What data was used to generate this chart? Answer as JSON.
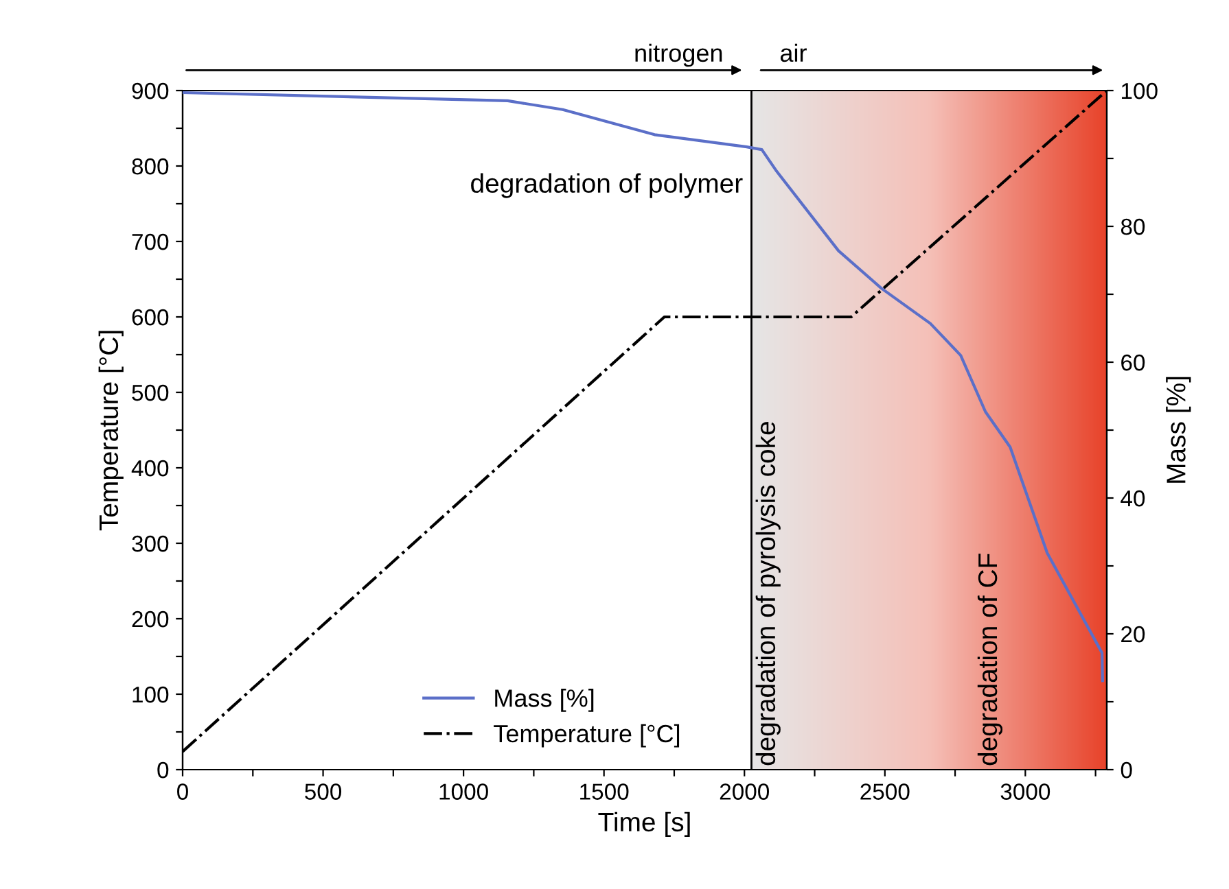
{
  "chart_data": {
    "type": "line",
    "xlabel": "Time [s]",
    "ylabel": "Temperature [°C]",
    "y2label": "Mass [%]",
    "series": [
      {
        "name": "Mass [%]",
        "color": "#5b6fc8",
        "axis": "y2",
        "line_style": "solid",
        "x": [
          0,
          1157,
          1353,
          1680,
          2008,
          2062,
          2115,
          2335,
          2487,
          2662,
          2770,
          2858,
          2946,
          3078,
          3273,
          3275
        ],
        "values": [
          99.7,
          98.5,
          97.2,
          93.5,
          91.7,
          91.3,
          88.1,
          76.4,
          70.9,
          65.7,
          61.0,
          52.7,
          47.5,
          31.9,
          17.2,
          13.1
        ]
      },
      {
        "name": "Temperature [°C]",
        "color": "#000000",
        "axis": "y",
        "line_style": "dashdot",
        "x": [
          0,
          1715,
          2380,
          3290
        ],
        "values": [
          24,
          600,
          600,
          900
        ]
      }
    ],
    "xlim": [
      0,
      3290
    ],
    "xticks": [
      0,
      {
        "value": 250,
        "label": null
      },
      500,
      {
        "value": 750,
        "label": null
      },
      1000,
      {
        "value": 1250,
        "label": null
      },
      1500,
      {
        "value": 1750,
        "label": null
      },
      2000,
      {
        "value": 2250,
        "label": null
      },
      2500,
      {
        "value": 2750,
        "label": null
      },
      3000,
      {
        "value": 3250,
        "label": null
      }
    ],
    "ylim": [
      0,
      900
    ],
    "yticks": [
      0,
      {
        "value": 50,
        "label": null
      },
      100,
      {
        "value": 150,
        "label": null
      },
      200,
      {
        "value": 250,
        "label": null
      },
      300,
      {
        "value": 350,
        "label": null
      },
      400,
      {
        "value": 450,
        "label": null
      },
      500,
      {
        "value": 550,
        "label": null
      },
      600,
      {
        "value": 650,
        "label": null
      },
      700,
      {
        "value": 750,
        "label": null
      },
      800,
      {
        "value": 850,
        "label": null
      },
      900
    ],
    "y2lim": [
      0,
      100
    ],
    "y2ticks": [
      0,
      {
        "value": 10,
        "label": null
      },
      20,
      {
        "value": 30,
        "label": null
      },
      40,
      {
        "value": 50,
        "label": null
      },
      60,
      {
        "value": 70,
        "label": null
      },
      80,
      {
        "value": 90,
        "label": null
      },
      100
    ],
    "ref_lines": [
      {
        "axis": "x",
        "value": 2025,
        "color": "#000000"
      }
    ],
    "bands": [
      {
        "axis": "x",
        "from": 2025,
        "to": 3290,
        "color": "#e8432a"
      }
    ],
    "annotations": [
      "nitrogen",
      "air",
      "degradation of polymer",
      "degradation of pyrolysis coke",
      "degradation of CF"
    ],
    "legend": "bottom",
    "grid": false
  }
}
